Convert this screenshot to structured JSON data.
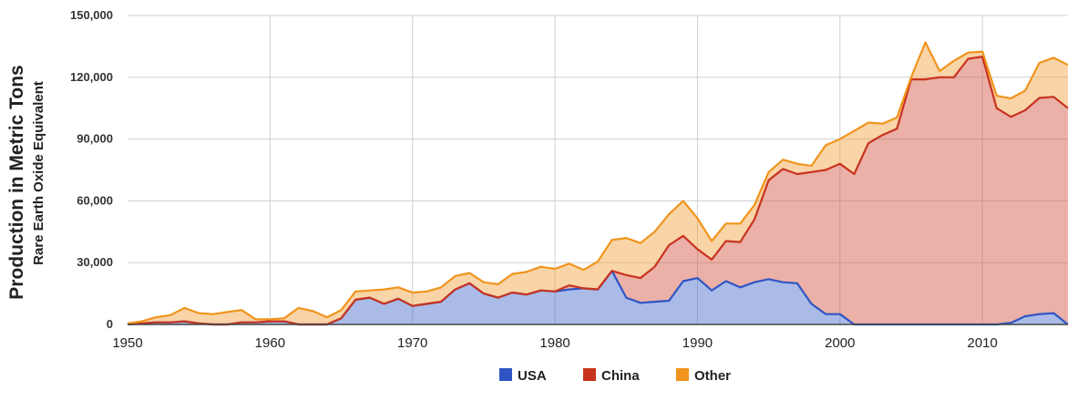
{
  "chart_data": {
    "type": "area",
    "stacked": true,
    "ylabel": "Production in Metric Tons",
    "ylabel_sub": "Rare Earth Oxide Equivalent",
    "xlim": [
      1950,
      2016
    ],
    "ylim": [
      0,
      150000
    ],
    "x_ticks": [
      "1950",
      "1960",
      "1970",
      "1980",
      "1990",
      "2000",
      "2010"
    ],
    "y_ticks": [
      "0",
      "30,000",
      "60,000",
      "90,000",
      "120,000",
      "150,000"
    ],
    "grid": true,
    "legend_position": "bottom",
    "x": [
      1950,
      1951,
      1952,
      1953,
      1954,
      1955,
      1956,
      1957,
      1958,
      1959,
      1960,
      1961,
      1962,
      1963,
      1964,
      1965,
      1966,
      1967,
      1968,
      1969,
      1970,
      1971,
      1972,
      1973,
      1974,
      1975,
      1976,
      1977,
      1978,
      1979,
      1980,
      1981,
      1982,
      1983,
      1984,
      1985,
      1986,
      1987,
      1988,
      1989,
      1990,
      1991,
      1992,
      1993,
      1994,
      1995,
      1996,
      1997,
      1998,
      1999,
      2000,
      2001,
      2002,
      2003,
      2004,
      2005,
      2006,
      2007,
      2008,
      2009,
      2010,
      2011,
      2012,
      2013,
      2014,
      2015,
      2016
    ],
    "series": [
      {
        "name": "USA",
        "color": "#2f55c4",
        "values": [
          0,
          500,
          1000,
          1000,
          1500,
          500,
          0,
          0,
          1000,
          1000,
          1500,
          1500,
          0,
          0,
          0,
          3000,
          12000,
          13000,
          10000,
          12500,
          9000,
          10000,
          11000,
          17000,
          20000,
          15000,
          13000,
          15500,
          14500,
          16500,
          16000,
          17000,
          17500,
          17000,
          26000,
          13000,
          10500,
          11000,
          11500,
          21000,
          22500,
          16500,
          21000,
          18000,
          20500,
          22000,
          20500,
          20000,
          10000,
          5000,
          5000,
          0,
          0,
          0,
          0,
          0,
          0,
          0,
          0,
          0,
          0,
          0,
          800,
          4000,
          5000,
          5500,
          0
        ]
      },
      {
        "name": "China",
        "color": "#c8331e",
        "values": [
          0,
          0,
          0,
          0,
          0,
          0,
          0,
          0,
          0,
          0,
          0,
          0,
          0,
          0,
          0,
          0,
          0,
          0,
          0,
          0,
          0,
          0,
          0,
          0,
          0,
          0,
          0,
          0,
          0,
          0,
          0,
          2000,
          0,
          0,
          0,
          11000,
          12000,
          17000,
          27000,
          22000,
          14000,
          15000,
          19500,
          22000,
          30500,
          48000,
          55000,
          53000,
          64000,
          70000,
          73000,
          73000,
          88000,
          92000,
          95000,
          119000,
          119000,
          120000,
          120000,
          129000,
          130000,
          105000,
          100000,
          100000,
          105000,
          105000,
          105000
        ]
      },
      {
        "name": "Other",
        "color": "#f0941c",
        "values": [
          500,
          1000,
          2500,
          3500,
          6500,
          5000,
          5000,
          6000,
          6000,
          1500,
          1000,
          1500,
          8000,
          6500,
          3500,
          4000,
          4000,
          3500,
          7000,
          5500,
          6500,
          6000,
          7000,
          6500,
          5000,
          5500,
          6500,
          9000,
          11000,
          11500,
          11000,
          10500,
          9000,
          13500,
          15000,
          18000,
          17000,
          17000,
          15000,
          17000,
          15000,
          9000,
          8500,
          9000,
          7000,
          4000,
          4500,
          5000,
          3000,
          12000,
          12000,
          21000,
          10000,
          5500,
          5500,
          1000,
          18000,
          3000,
          8000,
          3000,
          2500,
          6000,
          9000,
          9500,
          17000,
          19000,
          21000
        ]
      }
    ]
  }
}
